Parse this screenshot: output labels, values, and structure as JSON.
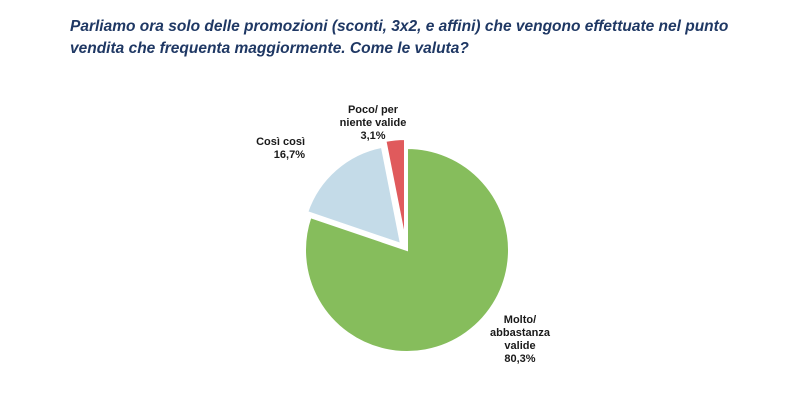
{
  "title": "Parliamo ora solo delle promozioni (sconti, 3x2, e affini) che vengono effettuate nel punto vendita che frequenta maggiormente. Come le valuta?",
  "colors": {
    "title": "#1f3864",
    "slice_green": "#86bd5c",
    "slice_blue": "#c4dbe8",
    "slice_red": "#e05a5c"
  },
  "chart_data": {
    "type": "pie",
    "title": "Parliamo ora solo delle promozioni (sconti, 3x2, e affini) che vengono effettuate nel punto vendita che frequenta maggiormente. Come le valuta?",
    "slices": [
      {
        "label_lines": [
          "Molto/",
          "abbastanza",
          "valide"
        ],
        "value": 80.3,
        "value_label": "80,3%",
        "color": "#86bd5c"
      },
      {
        "label_lines": [
          "Così così"
        ],
        "value": 16.7,
        "value_label": "16,7%",
        "color": "#c4dbe8"
      },
      {
        "label_lines": [
          "Poco/ per",
          "niente valide"
        ],
        "value": 3.1,
        "value_label": "3,1%",
        "color": "#e05a5c"
      }
    ],
    "start_angle_deg": 0,
    "direction": "clockwise",
    "exploded": true
  }
}
